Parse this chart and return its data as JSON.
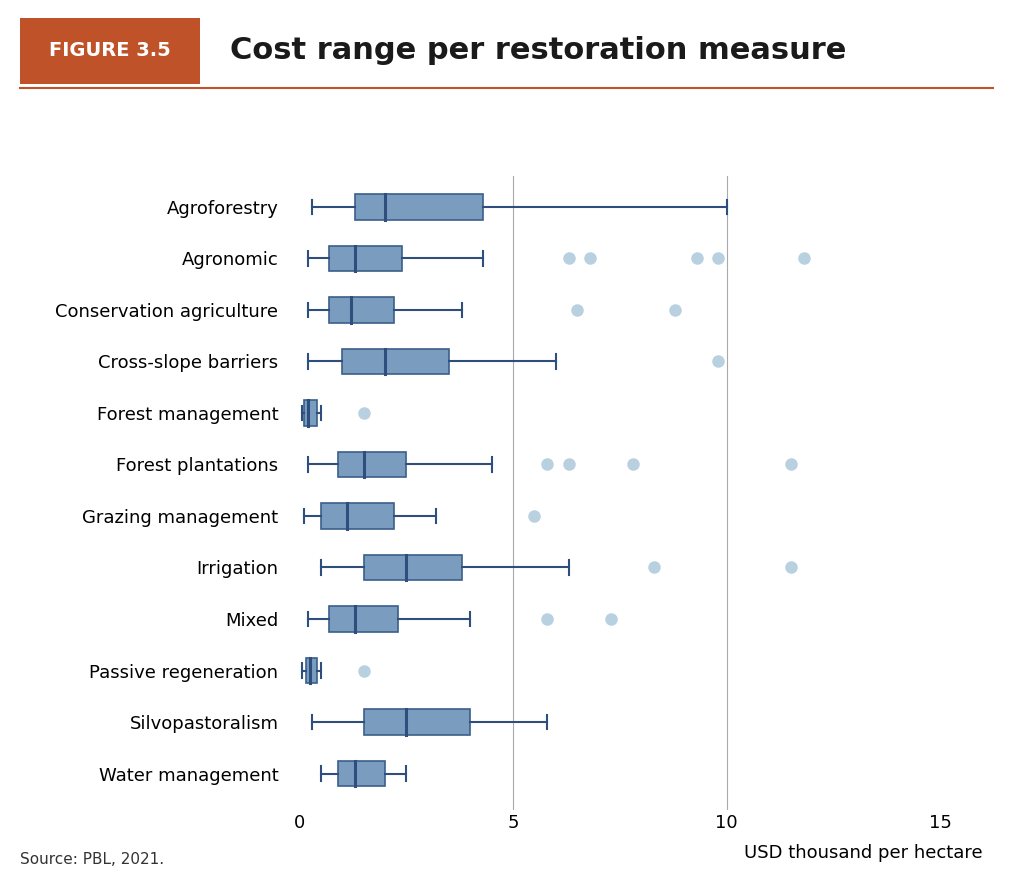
{
  "title": "Cost range per restoration measure",
  "figure_label": "FIGURE 3.5",
  "xlabel": "USD thousand per hectare",
  "source": "Source: PBL, 2021.",
  "xlim": [
    -0.3,
    16
  ],
  "xticks": [
    0,
    5,
    10,
    15
  ],
  "vlines": [
    5,
    10
  ],
  "background_color": "#ffffff",
  "box_color": "#7a9dbf",
  "box_edge_color": "#3b5f8a",
  "median_color": "#2e4e7e",
  "whisker_color": "#2e4e7e",
  "outlier_color": "#b8d0e0",
  "categories": [
    "Agroforestry",
    "Agronomic",
    "Conservation agriculture",
    "Cross-slope barriers",
    "Forest management",
    "Forest plantations",
    "Grazing management",
    "Irrigation",
    "Mixed",
    "Passive regeneration",
    "Silvopastoralism",
    "Water management"
  ],
  "boxes": [
    {
      "min": 0.3,
      "q1": 1.3,
      "median": 2.0,
      "q3": 4.3,
      "max": 10.0,
      "outliers": []
    },
    {
      "min": 0.2,
      "q1": 0.7,
      "median": 1.3,
      "q3": 2.4,
      "max": 4.3,
      "outliers": [
        6.3,
        6.8,
        9.3,
        9.8,
        11.8
      ]
    },
    {
      "min": 0.2,
      "q1": 0.7,
      "median": 1.2,
      "q3": 2.2,
      "max": 3.8,
      "outliers": [
        6.5,
        8.8
      ]
    },
    {
      "min": 0.2,
      "q1": 1.0,
      "median": 2.0,
      "q3": 3.5,
      "max": 6.0,
      "outliers": [
        9.8
      ]
    },
    {
      "min": 0.05,
      "q1": 0.1,
      "median": 0.2,
      "q3": 0.4,
      "max": 0.5,
      "outliers": [
        1.5
      ]
    },
    {
      "min": 0.2,
      "q1": 0.9,
      "median": 1.5,
      "q3": 2.5,
      "max": 4.5,
      "outliers": [
        5.8,
        6.3,
        7.8,
        11.5
      ]
    },
    {
      "min": 0.1,
      "q1": 0.5,
      "median": 1.1,
      "q3": 2.2,
      "max": 3.2,
      "outliers": [
        5.5
      ]
    },
    {
      "min": 0.5,
      "q1": 1.5,
      "median": 2.5,
      "q3": 3.8,
      "max": 6.3,
      "outliers": [
        8.3,
        11.5
      ]
    },
    {
      "min": 0.2,
      "q1": 0.7,
      "median": 1.3,
      "q3": 2.3,
      "max": 4.0,
      "outliers": [
        5.8,
        7.3
      ]
    },
    {
      "min": 0.05,
      "q1": 0.15,
      "median": 0.25,
      "q3": 0.4,
      "max": 0.5,
      "outliers": [
        1.5
      ]
    },
    {
      "min": 0.3,
      "q1": 1.5,
      "median": 2.5,
      "q3": 4.0,
      "max": 5.8,
      "outliers": []
    },
    {
      "min": 0.5,
      "q1": 0.9,
      "median": 1.3,
      "q3": 2.0,
      "max": 2.5,
      "outliers": []
    }
  ],
  "title_fontsize": 22,
  "label_fontsize": 13,
  "tick_fontsize": 13,
  "figure_label_fontsize": 14,
  "figure_label_bg": "#c0522a",
  "figure_label_text_color": "#ffffff",
  "header_line_color": "#c0522a"
}
